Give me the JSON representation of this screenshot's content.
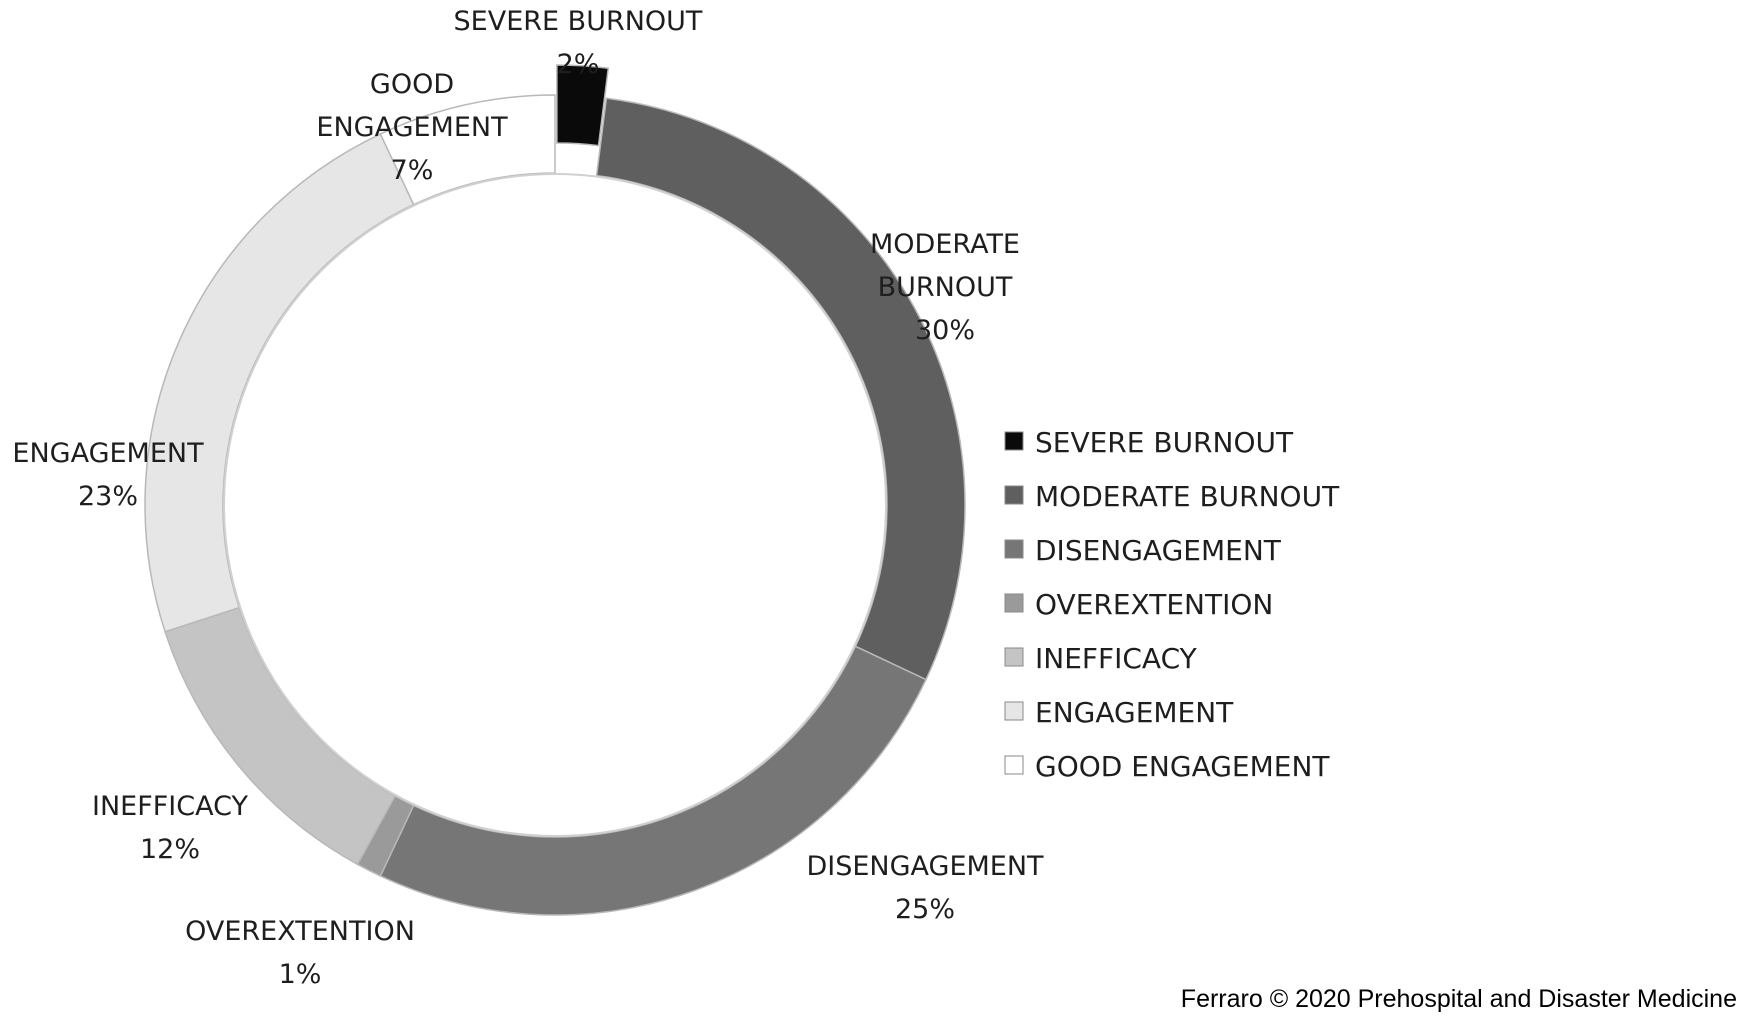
{
  "chart_data": {
    "type": "pie",
    "variant": "doughnut",
    "title": "",
    "legend_position": "right",
    "exploded": [
      "SEVERE BURNOUT"
    ],
    "slices": [
      {
        "name": "SEVERE BURNOUT",
        "label_lines": [
          "SEVERE BURNOUT"
        ],
        "value": 2,
        "value_label": "2%",
        "color": "#0a0a0a"
      },
      {
        "name": "MODERATE BURNOUT",
        "label_lines": [
          "MODERATE",
          "BURNOUT"
        ],
        "value": 30,
        "value_label": "30%",
        "color": "#5f5f5f"
      },
      {
        "name": "DISENGAGEMENT",
        "label_lines": [
          "DISENGAGEMENT"
        ],
        "value": 25,
        "value_label": "25%",
        "color": "#767676"
      },
      {
        "name": "OVEREXTENTION",
        "label_lines": [
          "OVEREXTENTION"
        ],
        "value": 1,
        "value_label": "1%",
        "color": "#9a9a9a"
      },
      {
        "name": "INEFFICACY",
        "label_lines": [
          "INEFFICACY"
        ],
        "value": 12,
        "value_label": "12%",
        "color": "#c4c4c4"
      },
      {
        "name": "ENGAGEMENT",
        "label_lines": [
          "ENGAGEMENT"
        ],
        "value": 23,
        "value_label": "23%",
        "color": "#e6e6e6"
      },
      {
        "name": "GOOD ENGAGEMENT",
        "label_lines": [
          "GOOD",
          "ENGAGEMENT"
        ],
        "value": 7,
        "value_label": "7%",
        "color": "#ffffff"
      }
    ]
  },
  "credit": "Ferraro © 2020 Prehospital and Disaster Medicine"
}
